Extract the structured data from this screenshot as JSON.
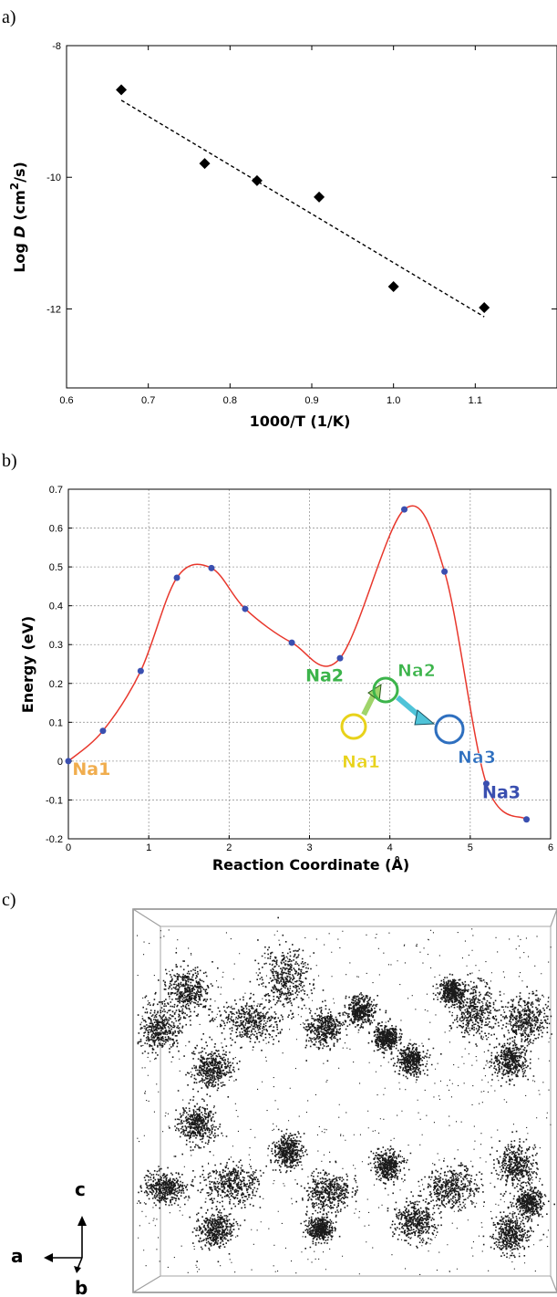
{
  "panels": {
    "a": "a)",
    "b": "b)",
    "c": "c)"
  },
  "chart_data": [
    {
      "type": "scatter",
      "title": "",
      "xlabel": "1000/T (1/K)",
      "ylabel_main": "Log ",
      "ylabel_italic": "D",
      "ylabel_unit_a": " (cm",
      "ylabel_sup": "2",
      "ylabel_unit_b": "/s)",
      "xlim": [
        0.6,
        1.2
      ],
      "ylim": [
        -13.2,
        -8
      ],
      "x_ticks": [
        0.6,
        0.7,
        0.8,
        0.9,
        1.0,
        1.1
      ],
      "x_tick_labels": [
        "0.6",
        "0.7",
        "0.8",
        "0.9",
        "1.0",
        "1.1"
      ],
      "y_ticks": [
        -8,
        -10,
        -12
      ],
      "y_tick_labels": [
        "-8",
        "-10",
        "-12"
      ],
      "grid": false,
      "series": [
        {
          "marker": "diamond",
          "color": "#000000",
          "x": [
            0.667,
            0.769,
            0.833,
            0.909,
            1.0,
            1.111
          ],
          "y": [
            -8.67,
            -9.79,
            -10.05,
            -10.3,
            -11.66,
            -11.98
          ]
        }
      ],
      "fit_line": {
        "style": "dashed",
        "x": [
          0.667,
          1.111
        ],
        "y": [
          -8.83,
          -12.12
        ]
      }
    },
    {
      "type": "line",
      "title": "",
      "xlabel": "Reaction Coordinate (Å)",
      "ylabel": "Energy (eV)",
      "xlim": [
        0,
        6
      ],
      "ylim": [
        -0.2,
        0.7
      ],
      "x_ticks": [
        0,
        1,
        2,
        3,
        4,
        5,
        6
      ],
      "x_tick_labels": [
        "0",
        "1",
        "2",
        "3",
        "4",
        "5",
        "6"
      ],
      "y_ticks": [
        -0.2,
        -0.1,
        0,
        0.1,
        0.2,
        0.3,
        0.4,
        0.5,
        0.6,
        0.7
      ],
      "y_tick_labels": [
        "-0.2",
        "-0.1",
        "0",
        "0.1",
        "0.2",
        "0.3",
        "0.4",
        "0.5",
        "0.6",
        "0.7"
      ],
      "grid": true,
      "series": [
        {
          "line_color": "#e8372c",
          "point_color": "#3a4fb0",
          "x": [
            0,
            0.43,
            0.9,
            1.35,
            1.78,
            2.2,
            2.78,
            3.38,
            4.18,
            4.68,
            5.2,
            5.7
          ],
          "y": [
            0,
            0.078,
            0.232,
            0.472,
            0.497,
            0.392,
            0.305,
            0.265,
            0.648,
            0.488,
            -0.058,
            -0.15
          ]
        }
      ],
      "annotations": [
        {
          "text": "Na1",
          "color": "#f0ad4e",
          "x": 0.05,
          "y": -0.035
        },
        {
          "text": "Na2",
          "color": "#3cb44b",
          "x": 2.95,
          "y": 0.205
        },
        {
          "text": "Na3",
          "color": "#3a4fb0",
          "x": 5.15,
          "y": -0.095
        }
      ]
    }
  ],
  "density_map": {
    "sites": [
      {
        "label": "Na1",
        "color": "#e8d21a"
      },
      {
        "label": "Na2",
        "color": "#3cb44b"
      },
      {
        "label": "Na3",
        "color": "#2e6fbf"
      }
    ],
    "arrow_colors": [
      "#9fd46a",
      "#4fc3d8"
    ],
    "axes": {
      "c": "c",
      "a": "a",
      "b": "b"
    }
  }
}
